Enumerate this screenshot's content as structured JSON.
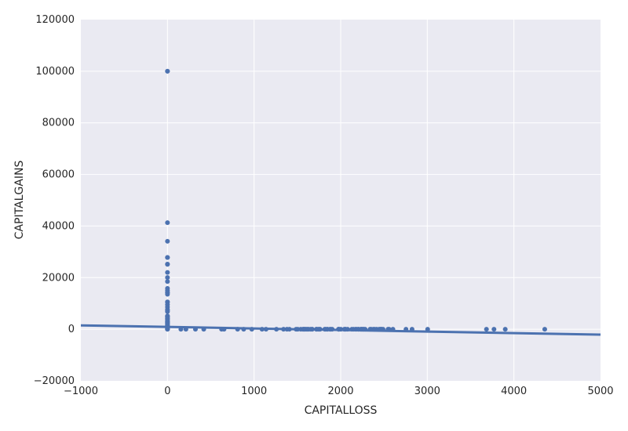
{
  "chart_data": {
    "type": "scatter",
    "xlabel": "CAPITALLOSS",
    "ylabel": "CAPITALGAINS",
    "xlim": [
      -1000,
      5000
    ],
    "ylim": [
      -20000,
      120000
    ],
    "xticks": [
      -1000,
      0,
      1000,
      2000,
      3000,
      4000,
      5000
    ],
    "yticks": [
      -20000,
      0,
      20000,
      40000,
      60000,
      80000,
      100000,
      120000
    ],
    "xtick_labels": [
      "−1000",
      "0",
      "1000",
      "2000",
      "3000",
      "4000",
      "5000"
    ],
    "ytick_labels": [
      "−20000",
      "0",
      "20000",
      "40000",
      "60000",
      "80000",
      "100000",
      "120000"
    ],
    "grid": true,
    "colors": {
      "background": "#eaeaf2",
      "grid": "#ffffff",
      "points": "#4c72b0",
      "line": "#4c72b0"
    },
    "regression_line": {
      "x": [
        -1000,
        5000
      ],
      "y": [
        1500,
        -2100
      ]
    },
    "points": {
      "x": [
        0,
        0,
        0,
        0,
        0,
        0,
        0,
        0,
        0,
        0,
        0,
        0,
        0,
        0,
        0,
        0,
        0,
        0,
        0,
        0,
        0,
        0,
        0,
        0,
        0,
        0,
        0,
        0,
        0,
        0,
        0,
        0,
        0,
        0,
        0,
        0,
        0,
        0,
        0,
        0,
        0,
        0,
        0,
        0,
        155,
        213,
        323,
        419,
        625,
        653,
        810,
        880,
        974,
        1092,
        1138,
        1258,
        1340,
        1380,
        1408,
        1485,
        1504,
        1539,
        1564,
        1573,
        1579,
        1590,
        1602,
        1617,
        1628,
        1651,
        1669,
        1672,
        1719,
        1721,
        1740,
        1755,
        1762,
        1816,
        1825,
        1844,
        1848,
        1876,
        1887,
        1902,
        1974,
        1977,
        1980,
        2001,
        2042,
        2051,
        2057,
        2080,
        2129,
        2149,
        2174,
        2179,
        2201,
        2205,
        2231,
        2238,
        2246,
        2258,
        2267,
        2282,
        2339,
        2352,
        2377,
        2392,
        2415,
        2444,
        2457,
        2467,
        2472,
        2489,
        2547,
        2559,
        2603,
        2754,
        2824,
        3004,
        3683,
        3770,
        3900,
        4356
      ],
      "y": [
        99999,
        100000,
        41310,
        34095,
        27828,
        27800,
        25236,
        25124,
        22040,
        20051,
        18481,
        15831,
        15024,
        14344,
        14084,
        13550,
        10605,
        10520,
        9562,
        8614,
        7688,
        7298,
        6849,
        5178,
        5013,
        4787,
        4386,
        4064,
        3908,
        3411,
        3103,
        2885,
        2597,
        2407,
        2176,
        1831,
        1506,
        1055,
        914,
        594,
        401,
        114,
        0,
        0,
        0,
        0,
        0,
        0,
        0,
        0,
        0,
        0,
        0,
        0,
        0,
        0,
        0,
        0,
        0,
        0,
        0,
        0,
        0,
        0,
        0,
        0,
        0,
        0,
        0,
        0,
        0,
        0,
        0,
        0,
        0,
        0,
        0,
        0,
        0,
        0,
        0,
        0,
        0,
        0,
        0,
        0,
        0,
        0,
        0,
        0,
        0,
        0,
        0,
        0,
        0,
        0,
        0,
        0,
        0,
        0,
        0,
        0,
        0,
        0,
        0,
        0,
        0,
        0,
        0,
        0,
        0,
        0,
        0,
        0,
        0,
        0,
        0,
        0,
        0,
        0,
        0,
        0,
        0,
        0
      ]
    }
  }
}
